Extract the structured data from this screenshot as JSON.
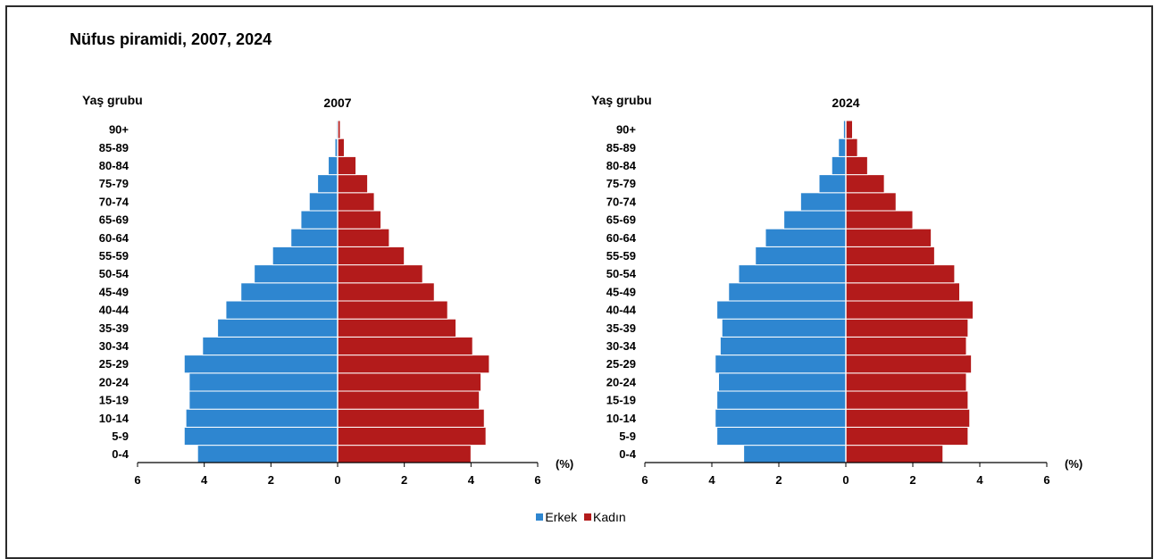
{
  "title": "Nüfus piramidi, 2007, 2024",
  "colors": {
    "male": "#2e86d0",
    "female": "#b31b1b",
    "axis": "#000000",
    "separator": "#ffffff"
  },
  "legend": {
    "male": "Erkek",
    "female": "Kadın"
  },
  "chart_data": [
    {
      "type": "bar",
      "orientation": "horizontal-pyramid",
      "title": "2007",
      "ylabel": "Yaş grubu",
      "xlabel": "(%)",
      "xlim": [
        -6,
        6
      ],
      "xticks": [
        "6",
        "4",
        "2",
        "0",
        "2",
        "4",
        "6"
      ],
      "categories": [
        "0-4",
        "5-9",
        "10-14",
        "15-19",
        "20-24",
        "25-29",
        "30-34",
        "35-39",
        "40-44",
        "45-49",
        "50-54",
        "55-59",
        "60-64",
        "65-69",
        "70-74",
        "75-79",
        "80-84",
        "85-89",
        "90+"
      ],
      "series": [
        {
          "name": "Erkek",
          "values": [
            4.2,
            4.6,
            4.55,
            4.45,
            4.45,
            4.6,
            4.05,
            3.6,
            3.35,
            2.9,
            2.5,
            1.95,
            1.4,
            1.1,
            0.85,
            0.6,
            0.28,
            0.08,
            0.04
          ]
        },
        {
          "name": "Kadın",
          "values": [
            4.0,
            4.45,
            4.4,
            4.25,
            4.3,
            4.55,
            4.05,
            3.55,
            3.3,
            2.9,
            2.55,
            2.0,
            1.55,
            1.3,
            1.1,
            0.9,
            0.55,
            0.2,
            0.08
          ]
        }
      ],
      "legend_position": "bottom-center"
    },
    {
      "type": "bar",
      "orientation": "horizontal-pyramid",
      "title": "2024",
      "ylabel": "Yaş grubu",
      "xlabel": "(%)",
      "xlim": [
        -6,
        6
      ],
      "xticks": [
        "6",
        "4",
        "2",
        "0",
        "2",
        "4",
        "6"
      ],
      "categories": [
        "0-4",
        "5-9",
        "10-14",
        "15-19",
        "20-24",
        "25-29",
        "30-34",
        "35-39",
        "40-44",
        "45-49",
        "50-54",
        "55-59",
        "60-64",
        "65-69",
        "70-74",
        "75-79",
        "80-84",
        "85-89",
        "90+"
      ],
      "series": [
        {
          "name": "Erkek",
          "values": [
            3.05,
            3.85,
            3.9,
            3.85,
            3.8,
            3.9,
            3.75,
            3.7,
            3.85,
            3.5,
            3.2,
            2.7,
            2.4,
            1.85,
            1.35,
            0.8,
            0.42,
            0.22,
            0.07
          ]
        },
        {
          "name": "Kadın",
          "values": [
            2.9,
            3.65,
            3.7,
            3.65,
            3.6,
            3.75,
            3.6,
            3.65,
            3.8,
            3.4,
            3.25,
            2.65,
            2.55,
            2.0,
            1.5,
            1.15,
            0.65,
            0.35,
            0.2
          ]
        }
      ],
      "legend_position": "bottom-center"
    }
  ]
}
